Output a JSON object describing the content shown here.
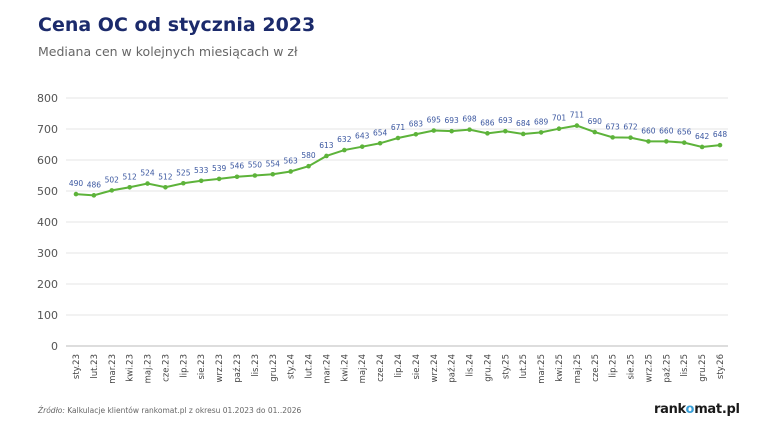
{
  "header": {
    "title": "Cena OC od stycznia 2023",
    "subtitle": "Mediana cen w kolejnych miesiącach w zł"
  },
  "footer": {
    "source_label": "Źródło:",
    "source_text": " Kalkulacje klientów rankomat.pl z okresu 01.2023 do 01..2026",
    "logo": "rankomat.pl"
  },
  "colors": {
    "line": "#5db33a",
    "label": "#3b57a0",
    "grid": "#e6e6e6",
    "title": "#1b2a6b"
  },
  "chart_data": {
    "type": "line",
    "title": "Cena OC od stycznia 2023",
    "subtitle": "Mediana cen w kolejnych miesiącach w zł",
    "ylim": [
      0,
      800
    ],
    "yticks": [
      0,
      100,
      200,
      300,
      400,
      500,
      600,
      700,
      800
    ],
    "grid": true,
    "categories": [
      "sty.23",
      "lut.23",
      "mar.23",
      "kwi.23",
      "maj.23",
      "cze.23",
      "lip.23",
      "sie.23",
      "wrz.23",
      "paź.23",
      "lis.23",
      "gru.23",
      "sty.24",
      "lut.24",
      "mar.24",
      "kwi.24",
      "maj.24",
      "cze.24",
      "lip.24",
      "sie.24",
      "wrz.24",
      "paź.24",
      "lis.24",
      "gru.24",
      "sty.25",
      "lut.25",
      "mar.25",
      "kwi.25",
      "maj.25",
      "cze.25",
      "lip.25",
      "sie.25",
      "wrz.25",
      "paź.25",
      "lis.25",
      "gru.25",
      "sty.26"
    ],
    "values": [
      490,
      486,
      502,
      512,
      524,
      512,
      525,
      533,
      539,
      546,
      550,
      554,
      563,
      580,
      613,
      632,
      643,
      654,
      671,
      683,
      695,
      693,
      698,
      686,
      693,
      684,
      689,
      701,
      711,
      690,
      673,
      672,
      660,
      660,
      656,
      642,
      648
    ]
  }
}
